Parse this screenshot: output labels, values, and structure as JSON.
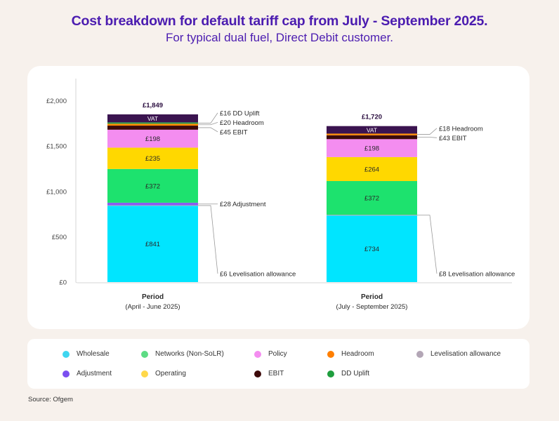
{
  "title": "Cost breakdown for default tariff cap from July - September 2025.",
  "subtitle": "For typical dual fuel, Direct Debit customer.",
  "source": "Source: Ofgem",
  "chart_data": {
    "type": "bar",
    "stacked": true,
    "ylim": [
      0,
      2000
    ],
    "yticks": [
      "£0",
      "£500",
      "£1,000",
      "£1,500",
      "£2,000"
    ],
    "ytick_values": [
      0,
      500,
      1000,
      1500,
      2000
    ],
    "categories": [
      {
        "label": "Period",
        "sublabel": "(April - June 2025)",
        "total_label": "£1,849"
      },
      {
        "label": "Period",
        "sublabel": "(July - September 2025)",
        "total_label": "£1,720"
      }
    ],
    "series": [
      {
        "name": "Wholesale",
        "color": "#00e5ff",
        "values": [
          841,
          734
        ],
        "labels": [
          "£841",
          "£734"
        ]
      },
      {
        "name": "Levelisation allowance",
        "color": "#b3a6b6",
        "values": [
          6,
          8
        ],
        "labels": [
          "",
          ""
        ]
      },
      {
        "name": "Adjustment",
        "color": "#8a5cf0",
        "values": [
          28,
          0
        ],
        "labels": [
          "",
          ""
        ]
      },
      {
        "name": "Networks (Non-SoLR)",
        "color": "#1de26e",
        "values": [
          372,
          372
        ],
        "labels": [
          "£372",
          "£372"
        ]
      },
      {
        "name": "Operating",
        "color": "#ffd800",
        "values": [
          235,
          264
        ],
        "labels": [
          "£235",
          "£264"
        ]
      },
      {
        "name": "Policy",
        "color": "#f48df0",
        "values": [
          198,
          198
        ],
        "labels": [
          "£198",
          "£198"
        ]
      },
      {
        "name": "EBIT",
        "color": "#3d0a0a",
        "values": [
          45,
          43
        ],
        "labels": [
          "",
          ""
        ]
      },
      {
        "name": "Headroom",
        "color": "#ff8a00",
        "values": [
          20,
          18
        ],
        "labels": [
          "",
          ""
        ]
      },
      {
        "name": "DD Uplift",
        "color": "#2e9e4e",
        "values": [
          16,
          0
        ],
        "labels": [
          "",
          ""
        ]
      },
      {
        "name": "VAT",
        "color": "#3b1450",
        "values": [
          88,
          83
        ],
        "labels": [
          "VAT",
          "VAT"
        ]
      }
    ],
    "annotations": [
      {
        "bar": 0,
        "series": "DD Uplift",
        "text": "£16 DD Uplift"
      },
      {
        "bar": 0,
        "series": "Headroom",
        "text": "£20 Headroom"
      },
      {
        "bar": 0,
        "series": "EBIT",
        "text": "£45 EBIT"
      },
      {
        "bar": 0,
        "series": "Adjustment",
        "text": "£28 Adjustment"
      },
      {
        "bar": 0,
        "series": "Levelisation allowance",
        "text": "£6 Levelisation allowance"
      },
      {
        "bar": 1,
        "series": "Headroom",
        "text": "£18 Headroom"
      },
      {
        "bar": 1,
        "series": "EBIT",
        "text": "£43 EBIT"
      },
      {
        "bar": 1,
        "series": "Levelisation allowance",
        "text": "£8 Levelisation allowance"
      }
    ],
    "legend": {
      "placement": "bottom",
      "rows": [
        [
          {
            "label": "Wholesale",
            "color": "#3fd6f0"
          },
          {
            "label": "Networks (Non-SoLR)",
            "color": "#5ddc84"
          },
          {
            "label": "Policy",
            "color": "#f48df0"
          },
          {
            "label": "Headroom",
            "color": "#ff7f00"
          },
          {
            "label": "Levelisation allowance",
            "color": "#b3a6b6"
          }
        ],
        [
          {
            "label": "Adjustment",
            "color": "#7b4ff0"
          },
          {
            "label": "Operating",
            "color": "#ffd84a"
          },
          {
            "label": "EBIT",
            "color": "#3d0a0a"
          },
          {
            "label": "DD Uplift",
            "color": "#1f9e3e"
          }
        ]
      ]
    },
    "grid": false
  }
}
